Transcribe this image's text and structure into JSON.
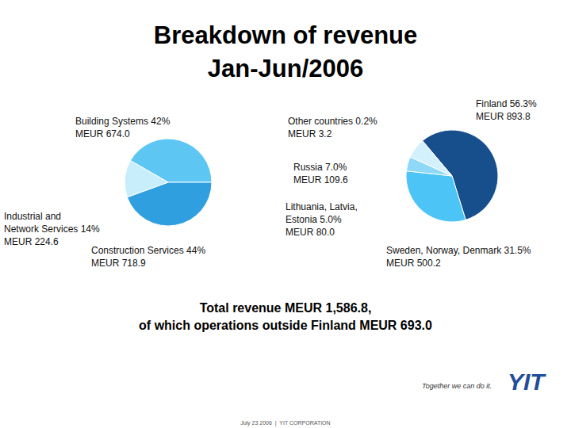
{
  "title": "Breakdown of revenue\nJan-Jun/2006",
  "chart_data": [
    {
      "type": "pie",
      "categories": [
        "Building Systems 42%",
        "Construction Services 44%",
        "Industrial and\nNetwork Services 14%"
      ],
      "values": [
        674.0,
        718.9,
        224.6
      ],
      "value_labels": [
        "MEUR 674.0",
        "MEUR 718.9",
        "MEUR 224.6"
      ],
      "colors": [
        "#5ec6f2",
        "#2f9fe0",
        "#c9eefb"
      ]
    },
    {
      "type": "pie",
      "categories": [
        "Finland 56.3%",
        "Sweden, Norway, Denmark 31.5%",
        "Lithuania, Latvia,\nEstonia 5.0%",
        "Russia 7.0%",
        "Other countries 0.2%"
      ],
      "values": [
        893.8,
        500.2,
        80.0,
        109.6,
        3.2
      ],
      "value_labels": [
        "MEUR 893.8",
        "MEUR 500.2",
        "MEUR 80.0",
        "MEUR 109.6",
        "MEUR 3.2"
      ],
      "colors": [
        "#174f8c",
        "#4cc4f5",
        "#8fd8f7",
        "#d2f1fc",
        "#1c4a80"
      ]
    }
  ],
  "caption": [
    "Total revenue MEUR 1,586.8,",
    "of which operations outside Finland MEUR 693.0"
  ],
  "slogan": "Together we can do it.",
  "logo": "YIT",
  "footer": "July 23 2006  |  YIT CORPORATION"
}
